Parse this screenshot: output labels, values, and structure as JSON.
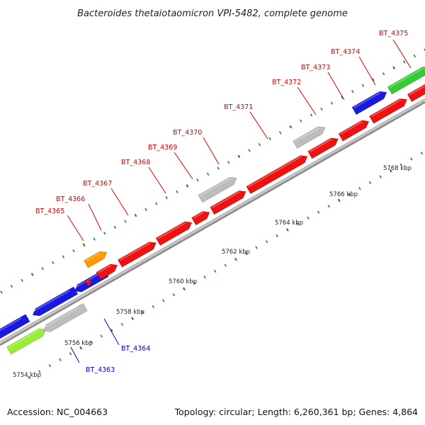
{
  "title": "Bacteroides thetaiotaomicron VPI-5482, complete genome",
  "footer": {
    "accession": "Accession: NC_004663",
    "topology": "Topology: circular; Length: 6,260,361 bp; Genes: 4,864"
  },
  "colors": {
    "forward_label": "#e00000",
    "reverse_label": "#0000cc",
    "backbone": "#9a9a9a",
    "tick": "#2e7d2e",
    "red": "#ee1111",
    "blue": "#1a1adf",
    "grey": "#bdbdbd",
    "orange": "#ff9900",
    "lime": "#99ee33",
    "green": "#33cc33"
  },
  "scale_labels": [
    "5754 kbp",
    "5756 kbp",
    "5758 kbp",
    "5760 kbp",
    "5762 kbp",
    "5764 kbp",
    "5766 kbp",
    "5768 kbp"
  ],
  "genes": [
    {
      "label": "BT_4363",
      "strand": "reverse",
      "color": "grey"
    },
    {
      "label": "BT_4364",
      "strand": "reverse",
      "color": "blue"
    },
    {
      "label": "BT_4365",
      "strand": "forward",
      "color": "red"
    },
    {
      "label": "BT_4366",
      "strand": "forward",
      "color": "orange"
    },
    {
      "label": "BT_4367",
      "strand": "forward",
      "color": "red"
    },
    {
      "label": "BT_4368",
      "strand": "forward",
      "color": "red"
    },
    {
      "label": "BT_4369",
      "strand": "forward",
      "color": "red"
    },
    {
      "label": "BT_4370",
      "strand": "forward",
      "color": "grey"
    },
    {
      "label": "BT_4371",
      "strand": "forward",
      "color": "red"
    },
    {
      "label": "BT_4372",
      "strand": "forward",
      "color": "grey"
    },
    {
      "label": "BT_4373",
      "strand": "forward",
      "color": "red"
    },
    {
      "label": "BT_4374",
      "strand": "forward",
      "color": "blue"
    },
    {
      "label": "BT_4375",
      "strand": "forward",
      "color": "green"
    }
  ]
}
